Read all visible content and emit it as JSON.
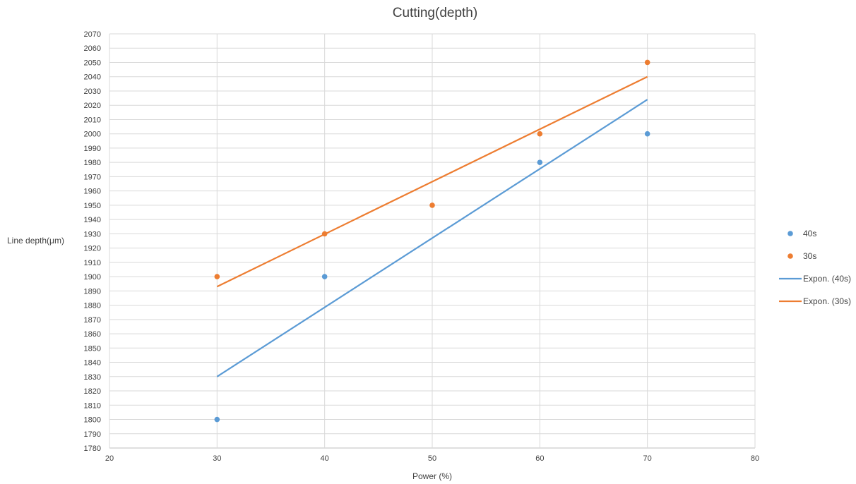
{
  "chart_data": {
    "type": "scatter",
    "title": "Cutting(depth)",
    "xlabel": "Power (%)",
    "ylabel": "Line depth(μm)",
    "xlim": [
      20,
      80
    ],
    "ylim": [
      1780,
      2070
    ],
    "xticks": [
      20,
      30,
      40,
      50,
      60,
      70,
      80
    ],
    "ytick_step": 10,
    "grid": true,
    "legend_position": "right",
    "series": [
      {
        "name": "40s",
        "kind": "points",
        "color": "#5b9bd5",
        "x": [
          30,
          40,
          60,
          70
        ],
        "y": [
          1800,
          1900,
          1980,
          2000
        ]
      },
      {
        "name": "30s",
        "kind": "points",
        "color": "#ed7d31",
        "x": [
          30,
          40,
          50,
          60,
          70
        ],
        "y": [
          1900,
          1930,
          1950,
          2000,
          2050
        ]
      },
      {
        "name": "Expon. (40s)",
        "kind": "trendline",
        "color": "#5b9bd5",
        "x": [
          30,
          70
        ],
        "y": [
          1830,
          2024
        ]
      },
      {
        "name": "Expon. (30s)",
        "kind": "trendline",
        "color": "#ed7d31",
        "x": [
          30,
          70
        ],
        "y": [
          1893,
          2040
        ]
      }
    ]
  }
}
